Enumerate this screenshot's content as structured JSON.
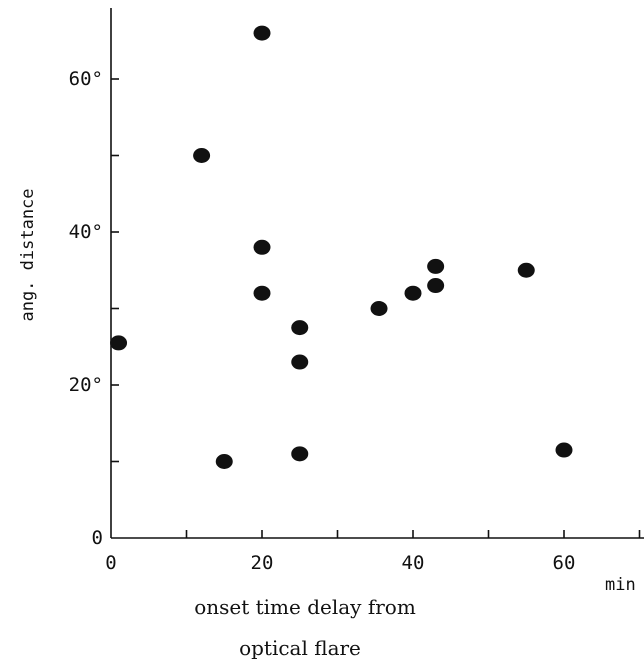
{
  "chart_data": {
    "type": "scatter",
    "ylabel": "ang. distance",
    "xlabel_line1": "onset time delay from",
    "xlabel_line2": "optical flare",
    "x_unit": "min",
    "xlim": [
      0,
      70
    ],
    "ylim": [
      0,
      70
    ],
    "x_ticks": [
      0,
      20,
      40,
      60
    ],
    "x_tick_labels": [
      "0",
      "20",
      "40",
      "60"
    ],
    "x_minor_ticks": [
      10,
      30,
      50,
      70
    ],
    "y_ticks": [
      0,
      20,
      40,
      60
    ],
    "y_tick_labels": [
      "0",
      "20°",
      "40°",
      "60°"
    ],
    "y_minor_ticks": [
      10,
      30,
      50
    ],
    "grid": false,
    "points": [
      {
        "x": 1,
        "y": 25.5
      },
      {
        "x": 12,
        "y": 50
      },
      {
        "x": 15,
        "y": 10
      },
      {
        "x": 20,
        "y": 66
      },
      {
        "x": 20,
        "y": 38
      },
      {
        "x": 20,
        "y": 32
      },
      {
        "x": 25,
        "y": 27.5
      },
      {
        "x": 25,
        "y": 23
      },
      {
        "x": 25,
        "y": 11
      },
      {
        "x": 35.5,
        "y": 30
      },
      {
        "x": 40,
        "y": 32
      },
      {
        "x": 43,
        "y": 35.5
      },
      {
        "x": 43,
        "y": 33
      },
      {
        "x": 55,
        "y": 35
      },
      {
        "x": 60,
        "y": 11.5
      }
    ]
  }
}
